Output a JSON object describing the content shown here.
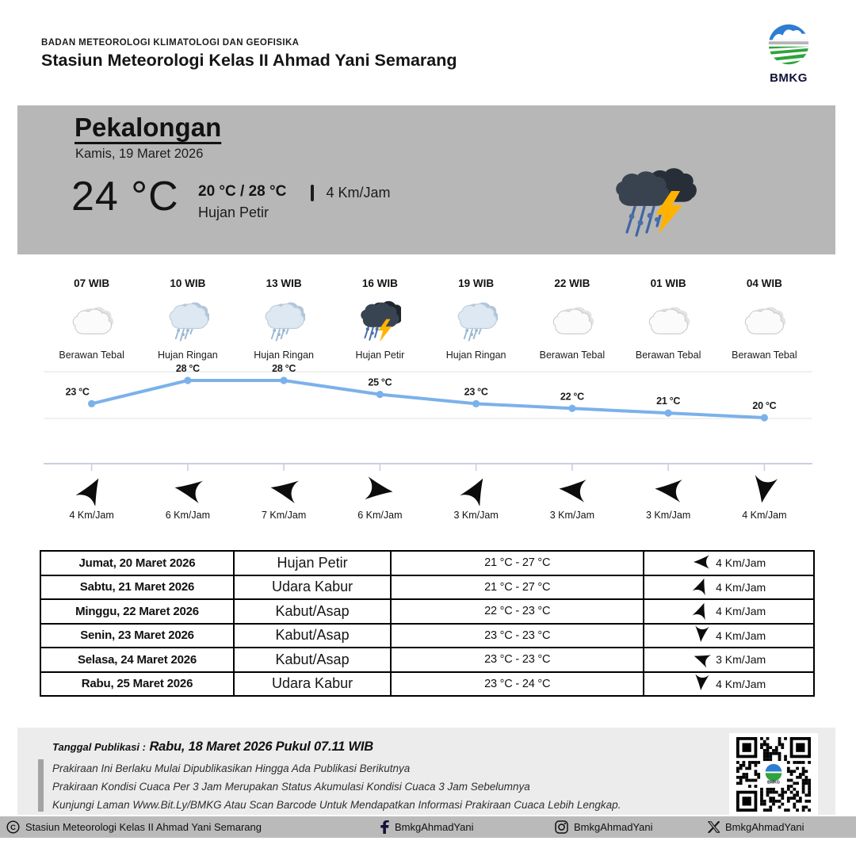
{
  "header": {
    "agency": "BADAN METEOROLOGI KLIMATOLOGI DAN GEOFISIKA",
    "station": "Stasiun Meteorologi Kelas II Ahmad Yani Semarang",
    "logo_text": "BMKG"
  },
  "banner": {
    "city": "Pekalongan",
    "date": "Kamis, 19 Maret 2026",
    "current_temp": "24 °C",
    "minmax": "20 °C / 28 °C",
    "condition": "Hujan Petir",
    "condition_icon": "hujan-petir",
    "wind": "4 Km/Jam"
  },
  "hourly": [
    {
      "time": "07 WIB",
      "icon": "berawan-tebal",
      "label": "Berawan Tebal",
      "wind_speed": "4 Km/Jam",
      "wind_dir_deg": -60
    },
    {
      "time": "10 WIB",
      "icon": "hujan-ringan",
      "label": "Hujan Ringan",
      "wind_speed": "6 Km/Jam",
      "wind_dir_deg": 190
    },
    {
      "time": "13 WIB",
      "icon": "hujan-ringan",
      "label": "Hujan Ringan",
      "wind_speed": "7 Km/Jam",
      "wind_dir_deg": 190
    },
    {
      "time": "16 WIB",
      "icon": "hujan-petir",
      "label": "Hujan Petir",
      "wind_speed": "6 Km/Jam",
      "wind_dir_deg": 8
    },
    {
      "time": "19 WIB",
      "icon": "hujan-ringan",
      "label": "Hujan Ringan",
      "wind_speed": "3 Km/Jam",
      "wind_dir_deg": -60
    },
    {
      "time": "22 WIB",
      "icon": "berawan-tebal",
      "label": "Berawan Tebal",
      "wind_speed": "3 Km/Jam",
      "wind_dir_deg": 185
    },
    {
      "time": "01 WIB",
      "icon": "berawan-tebal",
      "label": "Berawan Tebal",
      "wind_speed": "3 Km/Jam",
      "wind_dir_deg": 185
    },
    {
      "time": "04 WIB",
      "icon": "berawan-tebal",
      "label": "Berawan Tebal",
      "wind_speed": "4 Km/Jam",
      "wind_dir_deg": 100
    }
  ],
  "chart_data": {
    "type": "line",
    "categories": [
      "07 WIB",
      "10 WIB",
      "13 WIB",
      "16 WIB",
      "19 WIB",
      "22 WIB",
      "01 WIB",
      "04 WIB"
    ],
    "values": [
      23,
      28,
      28,
      25,
      23,
      22,
      21,
      20
    ],
    "labels": [
      "23 °C",
      "28 °C",
      "28 °C",
      "25 °C",
      "23 °C",
      "22 °C",
      "21 °C",
      "20 °C"
    ],
    "unit": "°C",
    "title": "",
    "xlabel": "",
    "ylabel": "",
    "ylim": [
      18,
      30
    ],
    "grid": true,
    "line_color": "#7bb1ea"
  },
  "daily_table": {
    "rows": [
      {
        "date": "Jumat, 20 Maret 2026",
        "condition": "Hujan Petir",
        "temp_range": "21 °C - 27 °C",
        "wind_speed": "4 Km/Jam",
        "wind_dir_deg": 180
      },
      {
        "date": "Sabtu, 21 Maret 2026",
        "condition": "Udara Kabur",
        "temp_range": "21 °C - 27 °C",
        "wind_speed": "4 Km/Jam",
        "wind_dir_deg": -70
      },
      {
        "date": "Minggu, 22 Maret 2026",
        "condition": "Kabut/Asap",
        "temp_range": "22 °C - 23 °C",
        "wind_speed": "4 Km/Jam",
        "wind_dir_deg": -70
      },
      {
        "date": "Senin, 23 Maret 2026",
        "condition": "Kabut/Asap",
        "temp_range": "23 °C - 23 °C",
        "wind_speed": "4 Km/Jam",
        "wind_dir_deg": 95
      },
      {
        "date": "Selasa, 24 Maret 2026",
        "condition": "Kabut/Asap",
        "temp_range": "23 °C - 23 °C",
        "wind_speed": "3 Km/Jam",
        "wind_dir_deg": 200
      },
      {
        "date": "Rabu, 25 Maret 2026",
        "condition": "Udara Kabur",
        "temp_range": "23 °C - 24 °C",
        "wind_speed": "4 Km/Jam",
        "wind_dir_deg": 95
      }
    ]
  },
  "footer": {
    "publication_label": "Tanggal Publikasi :",
    "publication_value": "Rabu, 18 Maret 2026 Pukul 07.11 WIB",
    "notes": [
      "Prakiraan Ini Berlaku Mulai Dipublikasikan Hingga Ada Publikasi Berikutnya",
      "Prakiraan Kondisi Cuaca Per 3 Jam Merupakan Status Akumulasi Kondisi Cuaca 3 Jam Sebelumnya",
      "Kunjungi Laman Www.Bit.Ly/BMKG Atau Scan Barcode Untuk Mendapatkan Informasi Prakiraan Cuaca Lebih Lengkap."
    ],
    "qr_logo_text": "BMKG"
  },
  "bottom_bar": {
    "copyright": "Stasiun Meteorologi Kelas II Ahmad Yani Semarang",
    "facebook": "BmkgAhmadYani",
    "instagram": "BmkgAhmadYani",
    "x": "BmkgAhmadYani"
  },
  "colors": {
    "banner_bg": "#b7b7b7",
    "footer_bg": "#ececec",
    "bottom_bar_bg": "#bababa",
    "chart_line": "#7bb1ea",
    "lightning": "#ffb300",
    "rain": "#4a6fa8"
  }
}
